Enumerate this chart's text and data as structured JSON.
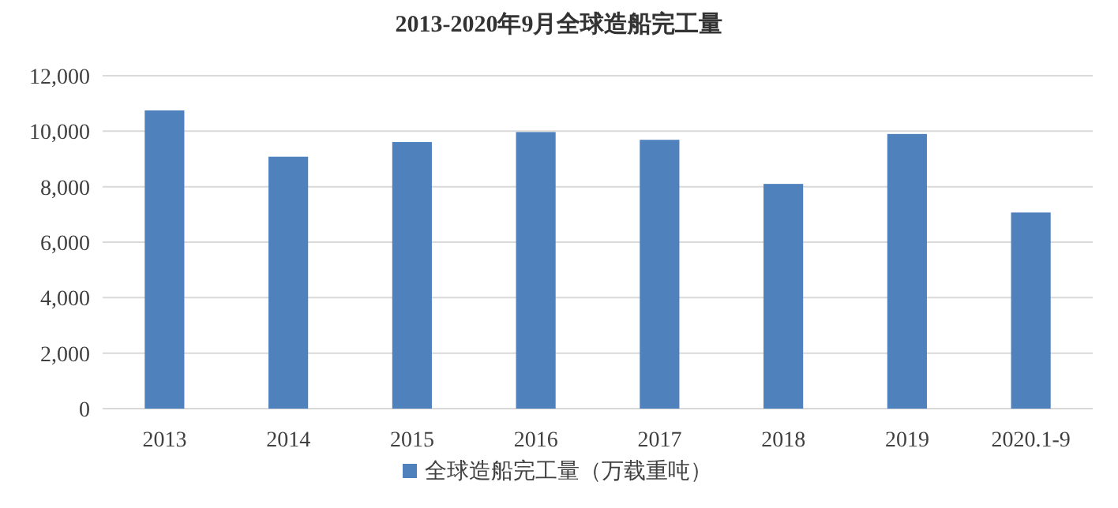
{
  "chart_data": {
    "type": "bar",
    "title": "2013-2020年9月全球造船完工量",
    "categories": [
      "2013",
      "2014",
      "2015",
      "2016",
      "2017",
      "2018",
      "2019",
      "2020.1-9"
    ],
    "series": [
      {
        "name": "全球造船完工量（万载重吨）",
        "color": "#4f81bd",
        "values": [
          10750,
          9080,
          9610,
          9970,
          9690,
          8100,
          9900,
          7070
        ]
      }
    ],
    "ylim": [
      0,
      12000
    ],
    "yticks": [
      {
        "value": 0,
        "label": "0"
      },
      {
        "value": 2000,
        "label": "2,000"
      },
      {
        "value": 4000,
        "label": "4,000"
      },
      {
        "value": 6000,
        "label": "6,000"
      },
      {
        "value": 8000,
        "label": "8,000"
      },
      {
        "value": 10000,
        "label": "10,000"
      },
      {
        "value": 12000,
        "label": "12,000"
      }
    ],
    "grid": "y",
    "legend": "bottom"
  }
}
